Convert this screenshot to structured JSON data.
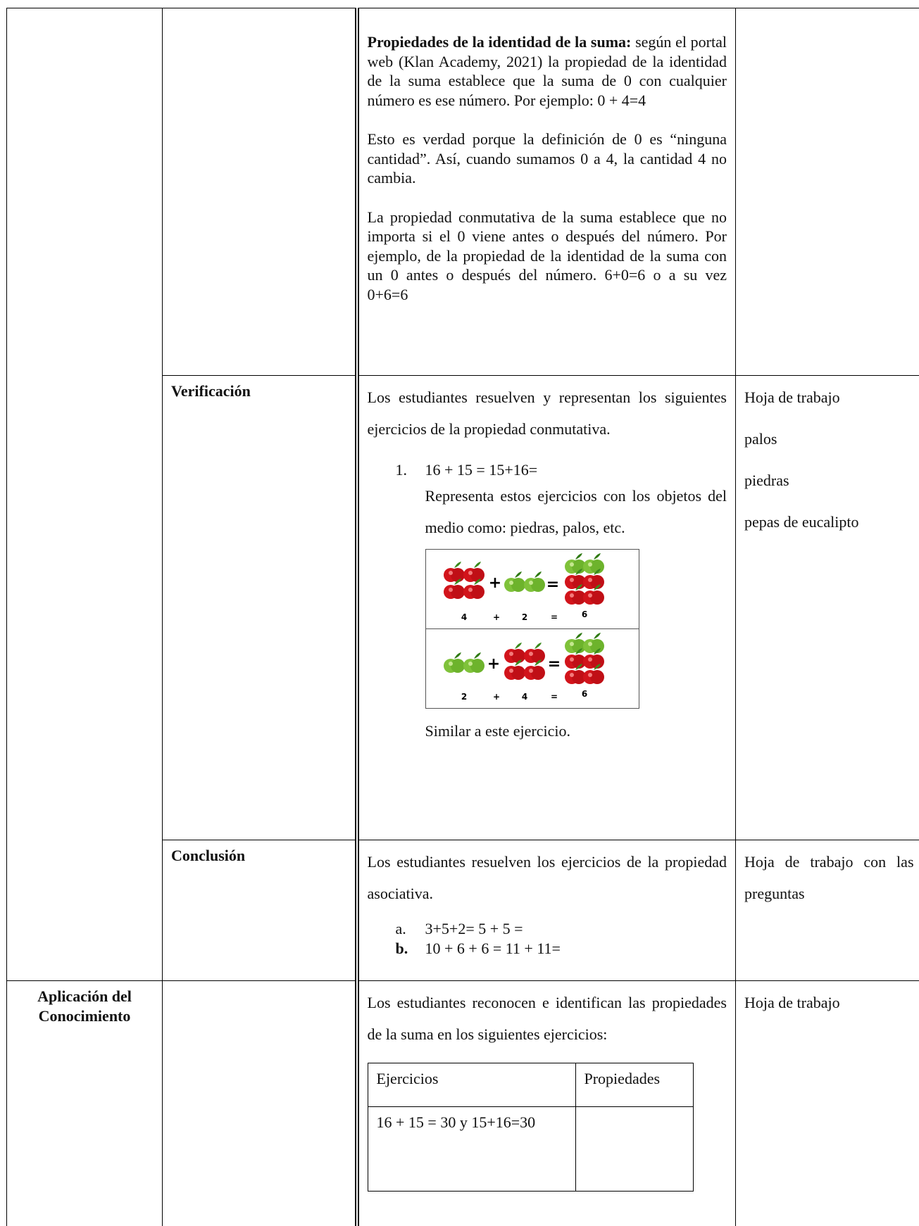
{
  "identity": {
    "heading": "Propiedades de la identidad de la suma:",
    "text": "según el portal web (Klan Academy, 2021) la propiedad de la identidad de la suma establece que la suma de 0 con cualquier número es ese número. Por ejemplo: 0 + 4=4",
    "paragraphs": [
      "Esto es verdad porque la definición de 0 es “ninguna cantidad”. Así, cuando sumamos 0 a 4, la cantidad 4 no cambia.",
      "La propiedad conmutativa de la suma establece que no importa si el 0 viene antes o después del número. Por ejemplo, de la propiedad de la identidad de la suma con un 0 antes o después del número. 6+0=6  o a su vez 0+6=6"
    ]
  },
  "verification": {
    "stage": "Verificación",
    "intro": "Los estudiantes resuelven y representan los siguientes ejercicios de la propiedad conmutativa.",
    "item": {
      "marker": "1.",
      "text": "16 + 15 = 15+16=",
      "instruction": "Representa estos ejercicios con los objetos del medio como: piedras, palos, etc."
    },
    "figure": {
      "rows": [
        [
          "4",
          "+",
          "2",
          "=",
          "6"
        ],
        [
          "2",
          "+",
          "4",
          "=",
          "6"
        ]
      ]
    },
    "note": "Similar a este ejercicio.",
    "resources": [
      "Hoja de trabajo",
      "palos",
      "piedras",
      "pepas de eucalipto"
    ]
  },
  "conclusion": {
    "stage": "Conclusión",
    "intro": "Los estudiantes resuelven los ejercicios de la propiedad asociativa.",
    "items": [
      {
        "marker": "a.",
        "text": "3+5+2= 5 + 5 ="
      },
      {
        "marker": "b.",
        "text": "10 + 6 + 6 = 11 + 11="
      }
    ],
    "resources": [
      "Hoja de trabajo con las preguntas"
    ]
  },
  "application": {
    "phase": "Aplicación del Conocimiento",
    "intro": "Los estudiantes reconocen e identifican las propiedades de la suma en los siguientes ejercicios:",
    "table": {
      "header": [
        "Ejercicios",
        "Propiedades"
      ],
      "rows": [
        {
          "exercise": "16 + 15 = 30 y 15+16=30"
        }
      ]
    },
    "resources": [
      "Hoja de trabajo"
    ]
  }
}
